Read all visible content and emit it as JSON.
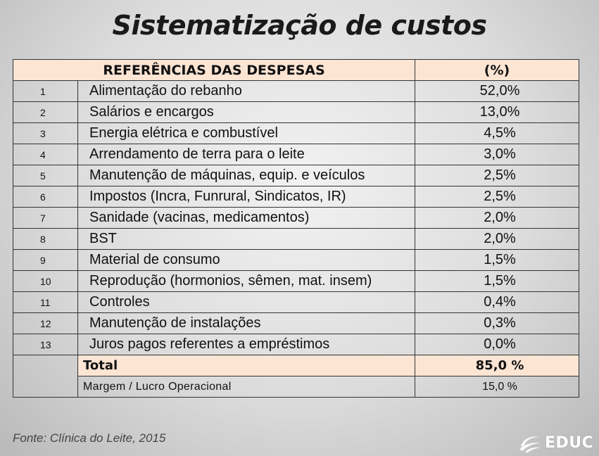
{
  "title": "Sistematização de custos",
  "table": {
    "header": {
      "references": "REFERÊNCIAS DAS DESPESAS",
      "percent": "(%)"
    },
    "rows": [
      {
        "num": "1",
        "desc": "Alimentação do rebanho",
        "pct": "52,0%"
      },
      {
        "num": "2",
        "desc": "Salários e encargos",
        "pct": "13,0%"
      },
      {
        "num": "3",
        "desc": "Energia elétrica e combustível",
        "pct": "4,5%"
      },
      {
        "num": "4",
        "desc": "Arrendamento de terra para o leite",
        "pct": "3,0%"
      },
      {
        "num": "5",
        "desc": "Manutenção de máquinas, equip. e veículos",
        "pct": "2,5%"
      },
      {
        "num": "6",
        "desc": "Impostos (Incra, Funrural, Sindicatos, IR)",
        "pct": "2,5%"
      },
      {
        "num": "7",
        "desc": "Sanidade  (vacinas, medicamentos)",
        "pct": "2,0%"
      },
      {
        "num": "8",
        "desc": "BST",
        "pct": "2,0%"
      },
      {
        "num": "9",
        "desc": "Material de consumo",
        "pct": "1,5%"
      },
      {
        "num": "10",
        "desc": "Reprodução (hormonios, sêmen, mat. insem)",
        "pct": "1,5%"
      },
      {
        "num": "11",
        "desc": "Controles",
        "pct": "0,4%"
      },
      {
        "num": "12",
        "desc": "Manutenção de instalações",
        "pct": "0,3%"
      },
      {
        "num": "13",
        "desc": "Juros pagos referentes a empréstimos",
        "pct": "0,0%"
      }
    ],
    "total": {
      "label": "Total",
      "value": "85,0 %"
    },
    "margin": {
      "label": "Margem / Lucro Operacional",
      "value": "15,0 %"
    }
  },
  "source": "Fonte: Clínica do Leite, 2015",
  "logo": {
    "text": "EDUC",
    "icon": "globe-swoosh-icon"
  }
}
